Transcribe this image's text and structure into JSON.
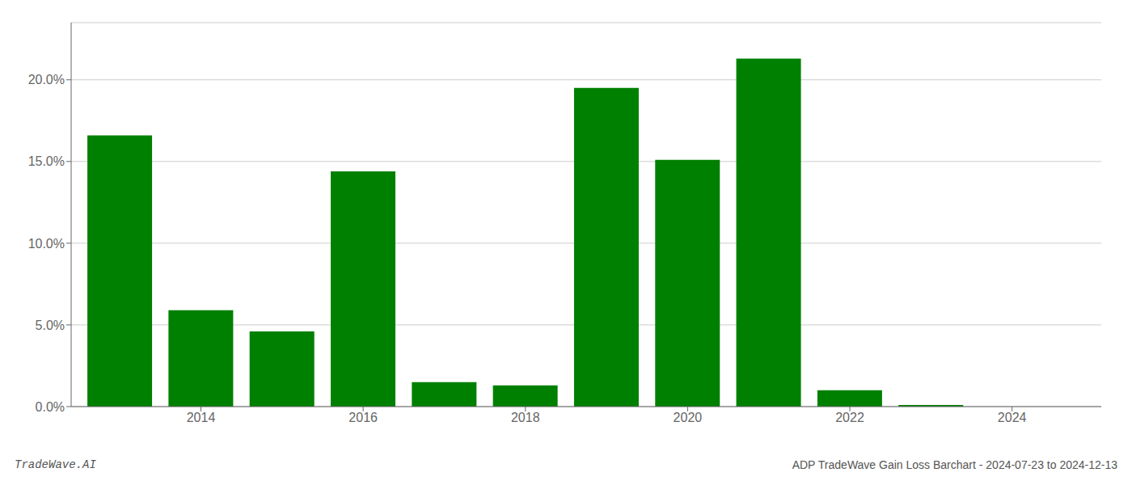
{
  "chart_data": {
    "type": "bar",
    "x": [
      2013,
      2014,
      2015,
      2016,
      2017,
      2018,
      2019,
      2020,
      2021,
      2022,
      2023,
      2024
    ],
    "values": [
      0.166,
      0.059,
      0.046,
      0.144,
      0.015,
      0.013,
      0.195,
      0.151,
      0.213,
      0.01,
      0.001,
      0.0
    ],
    "color": "#008000",
    "xlim": [
      2012.4,
      2025.1
    ],
    "xticks": [
      2014,
      2016,
      2018,
      2020,
      2022,
      2024
    ],
    "ylim": [
      0,
      0.235
    ],
    "yticks": [
      {
        "value": 0.0,
        "label": "0.0%"
      },
      {
        "value": 0.05,
        "label": "5.0%"
      },
      {
        "value": 0.1,
        "label": "10.0%"
      },
      {
        "value": 0.15,
        "label": "15.0%"
      },
      {
        "value": 0.2,
        "label": "20.0%"
      }
    ],
    "grid": true,
    "annotations": [
      "TradeWave.AI",
      "ADP TradeWave Gain Loss Barchart - 2024-07-23 to 2024-12-13"
    ]
  }
}
